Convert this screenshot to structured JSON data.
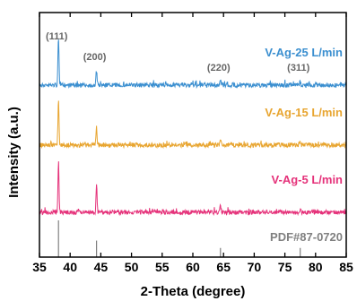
{
  "chart_data": {
    "type": "line",
    "xlabel": "2-Theta (degree)",
    "ylabel": "Intensity (a.u.)",
    "xlim": [
      35,
      85
    ],
    "xticks": [
      35,
      40,
      45,
      50,
      55,
      60,
      65,
      70,
      75,
      80,
      85
    ],
    "yticks": "none",
    "grid": false,
    "legend": "inline labels at right of each trace",
    "peaks": [
      {
        "label": "(111)",
        "x": 38.1
      },
      {
        "label": "(200)",
        "x": 44.3
      },
      {
        "label": "(220)",
        "x": 64.5
      },
      {
        "label": "(311)",
        "x": 77.5
      }
    ],
    "series": [
      {
        "name": "V-Ag-25 L/min",
        "color": "#3b8fd0",
        "peak_heights": [
          1.0,
          0.3,
          0.08,
          0.07
        ]
      },
      {
        "name": "V-Ag-15 L/min",
        "color": "#e8a530",
        "peak_heights": [
          0.85,
          0.35,
          0.1,
          0.06
        ]
      },
      {
        "name": "V-Ag-5 L/min",
        "color": "#e5327a",
        "peak_heights": [
          1.0,
          0.55,
          0.15,
          0.08
        ]
      }
    ],
    "reference": {
      "name": "PDF#87-0720",
      "color": "#808080",
      "lines": [
        {
          "x": 38.1,
          "intensity": 1.0
        },
        {
          "x": 44.3,
          "intensity": 0.45
        },
        {
          "x": 64.5,
          "intensity": 0.25
        },
        {
          "x": 77.5,
          "intensity": 0.25
        }
      ]
    }
  }
}
